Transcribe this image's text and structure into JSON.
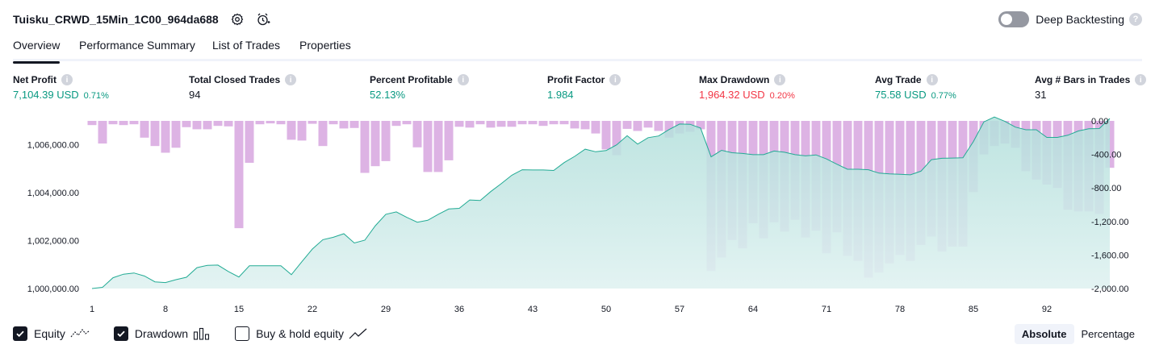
{
  "header": {
    "title": "Tuisku_CRWD_15Min_1C00_964da688",
    "deep_backtesting_label": "Deep Backtesting"
  },
  "tabs": [
    {
      "label": "Overview",
      "active": true
    },
    {
      "label": "Performance Summary",
      "active": false
    },
    {
      "label": "List of Trades",
      "active": false
    },
    {
      "label": "Properties",
      "active": false
    }
  ],
  "metrics": [
    {
      "label": "Net Profit",
      "value": "7,104.39 USD",
      "pct": "0.71%",
      "color": "#089981"
    },
    {
      "label": "Total Closed Trades",
      "value": "94",
      "pct": "",
      "color": "#131722"
    },
    {
      "label": "Percent Profitable",
      "value": "52.13%",
      "pct": "",
      "color": "#089981"
    },
    {
      "label": "Profit Factor",
      "value": "1.984",
      "pct": "",
      "color": "#089981"
    },
    {
      "label": "Max Drawdown",
      "value": "1,964.32 USD",
      "pct": "0.20%",
      "color": "#f23645"
    },
    {
      "label": "Avg Trade",
      "value": "75.58 USD",
      "pct": "0.77%",
      "color": "#089981"
    },
    {
      "label": "Avg # Bars in Trades",
      "value": "31",
      "pct": "",
      "color": "#131722"
    }
  ],
  "chart_data": {
    "type": "area",
    "x_ticks": [
      "1",
      "8",
      "15",
      "22",
      "29",
      "36",
      "43",
      "50",
      "57",
      "64",
      "71",
      "78",
      "85",
      "92"
    ],
    "y_left_ticks": [
      "1,000,000.00",
      "1,002,000.00",
      "1,004,000.00",
      "1,006,000.00"
    ],
    "y_right_ticks": [
      "0.00",
      "-400.00",
      "-800.00",
      "-1,200.00",
      "-1,600.00",
      "-2,000.00"
    ],
    "y_left_range": [
      1000000,
      1007000
    ],
    "y_right_range": [
      -2000,
      0
    ],
    "series": [
      {
        "name": "Equity",
        "color": "#22ab94",
        "values": [
          1000000,
          1000050,
          1000450,
          1000600,
          1000650,
          1000520,
          1000280,
          1000250,
          1000370,
          1000470,
          1000870,
          1000970,
          1000980,
          1000710,
          1000480,
          1000950,
          1000950,
          1000950,
          1000950,
          1000580,
          1001120,
          1001650,
          1002040,
          1002140,
          1002290,
          1001900,
          1002020,
          1002620,
          1003100,
          1003200,
          1002970,
          1002770,
          1002850,
          1003100,
          1003320,
          1003350,
          1003700,
          1003680,
          1004050,
          1004380,
          1004730,
          1004960,
          1004950,
          1004950,
          1004930,
          1005260,
          1005520,
          1005820,
          1005710,
          1005760,
          1006000,
          1006380,
          1006030,
          1006300,
          1006370,
          1006640,
          1006870,
          1006860,
          1006700,
          1005500,
          1005770,
          1005670,
          1005640,
          1005590,
          1005590,
          1005740,
          1005690,
          1005590,
          1005540,
          1005580,
          1005410,
          1005190,
          1004980,
          1004980,
          1004960,
          1004820,
          1004790,
          1004770,
          1004750,
          1004900,
          1005380,
          1005440,
          1005450,
          1005460,
          1006140,
          1006960,
          1007160,
          1006980,
          1006740,
          1006630,
          1006630,
          1006310,
          1006310,
          1006400,
          1006580,
          1006670,
          1006680,
          1007100
        ]
      },
      {
        "name": "Drawdown",
        "color": "#ce93d8",
        "values": [
          -50,
          -270,
          -40,
          -50,
          -40,
          -200,
          -300,
          -380,
          -320,
          -75,
          -100,
          -100,
          -60,
          -65,
          -1280,
          -500,
          -40,
          -30,
          -40,
          -225,
          -235,
          -35,
          -300,
          -40,
          -90,
          -85,
          -620,
          -540,
          -480,
          -60,
          -40,
          -315,
          -610,
          -610,
          -470,
          -70,
          -80,
          -40,
          -80,
          -70,
          -70,
          -40,
          -40,
          -60,
          -40,
          -40,
          -90,
          -100,
          -150,
          -340,
          -410,
          -95,
          -120,
          -80,
          -120,
          -200,
          -150,
          -130,
          -100,
          -1790,
          -1630,
          -1420,
          -1520,
          -1220,
          -1400,
          -1210,
          -1320,
          -1180,
          -1390,
          -1310,
          -1580,
          -1330,
          -1610,
          -1670,
          -1870,
          -1810,
          -1700,
          -1600,
          -1670,
          -1480,
          -1380,
          -1560,
          -1500,
          -1500,
          -850,
          -400,
          -300,
          -270,
          -320,
          -600,
          -700,
          -760,
          -800,
          -1060,
          -1080,
          -1080,
          -1110,
          -560
        ]
      }
    ],
    "legend_placement": "bottom-left",
    "grid": false
  },
  "legend": {
    "items": [
      {
        "label": "Equity",
        "checked": true,
        "icon": "equity-line-icon"
      },
      {
        "label": "Drawdown",
        "checked": true,
        "icon": "drawdown-bars-icon"
      },
      {
        "label": "Buy & hold equity",
        "checked": false,
        "icon": "buy-hold-line-icon"
      }
    ]
  },
  "view_mode": {
    "absolute_label": "Absolute",
    "percentage_label": "Percentage",
    "selected": "Absolute"
  }
}
